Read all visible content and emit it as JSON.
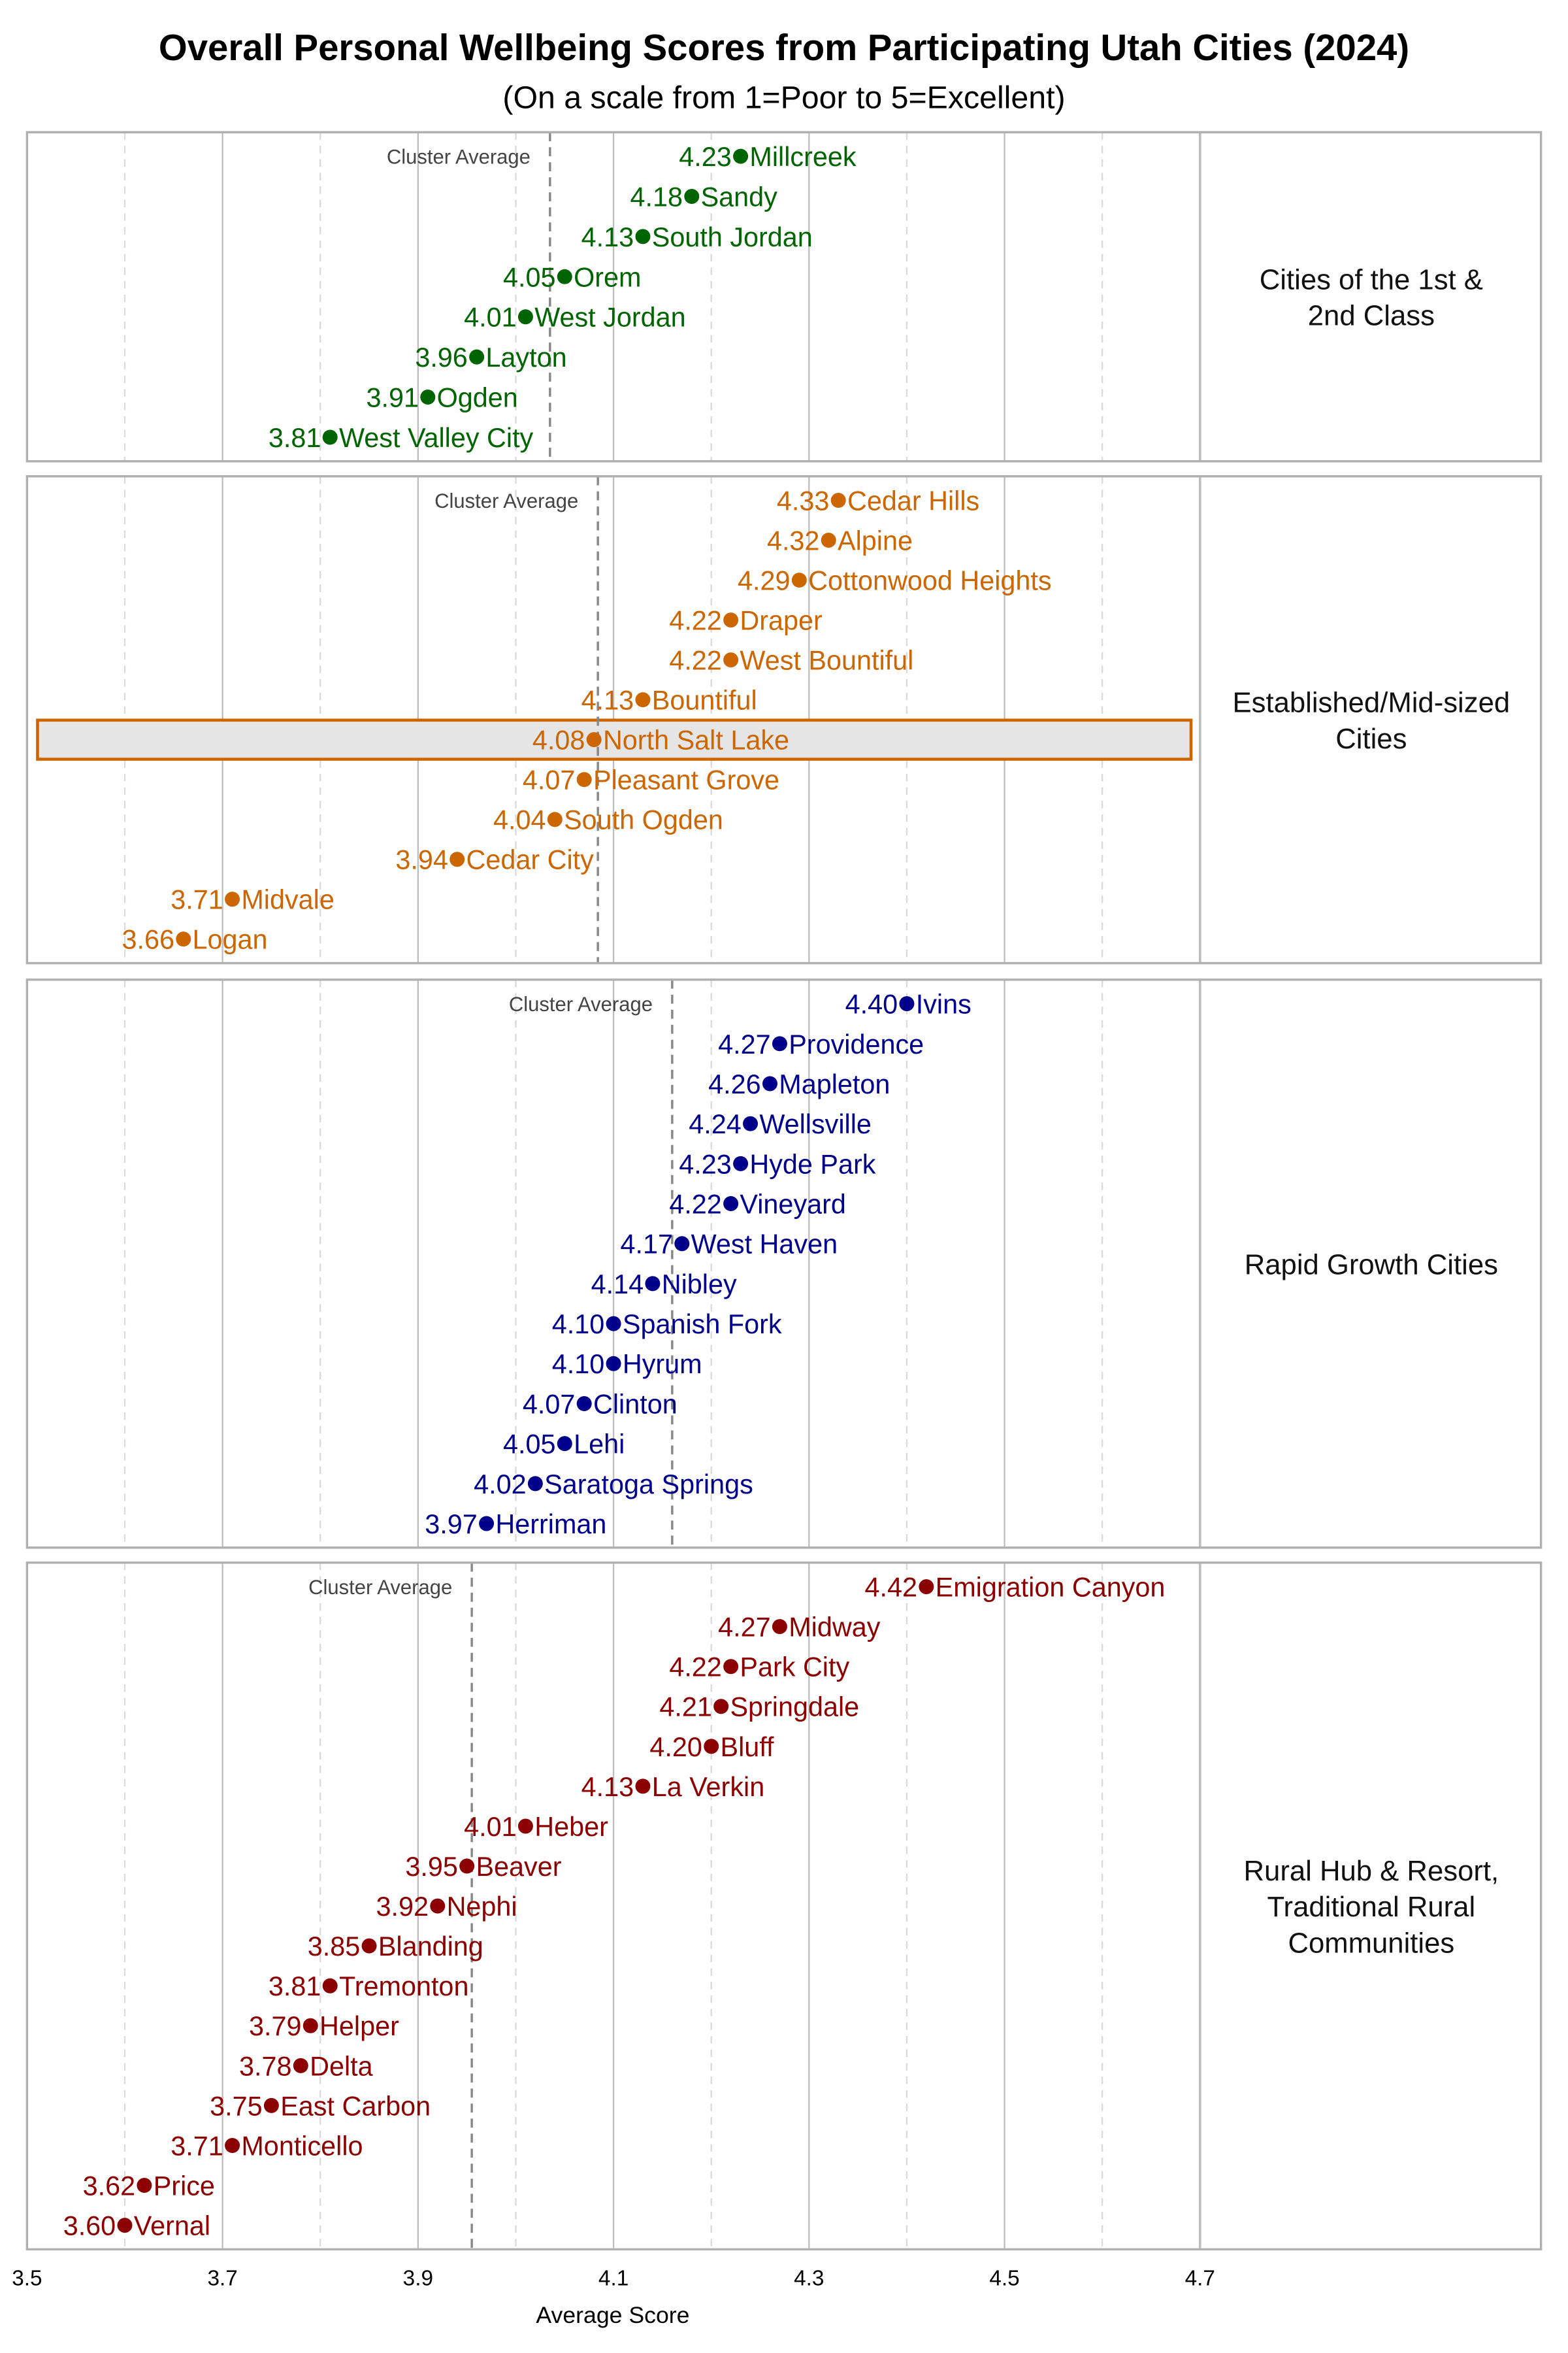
{
  "chart_data": {
    "type": "dot",
    "title": "Overall Personal Wellbeing Scores from Participating Utah Cities (2024)",
    "subtitle": "(On a scale from 1=Poor to 5=Excellent)",
    "xlabel": "Average Score",
    "xlim": [
      3.5,
      5.05
    ],
    "xticks": [
      "3.5",
      "3.7",
      "3.9",
      "4.1",
      "4.3",
      "4.5",
      "4.7"
    ],
    "grid": true,
    "average_label": "Cluster Average",
    "highlight": "North Salt Lake",
    "panels": [
      {
        "name": "Cities of the 1st & 2nd Class",
        "strip": [
          "Cities of the 1st &",
          "2nd Class"
        ],
        "color": "#006400",
        "average": 4.035,
        "points": [
          [
            "Millcreek",
            4.23
          ],
          [
            "Sandy",
            4.18
          ],
          [
            "South Jordan",
            4.13
          ],
          [
            "Orem",
            4.05
          ],
          [
            "West Jordan",
            4.01
          ],
          [
            "Layton",
            3.96
          ],
          [
            "Ogden",
            3.91
          ],
          [
            "West Valley City",
            3.81
          ]
        ]
      },
      {
        "name": "Established/Mid-sized Cities",
        "strip": [
          "Established/Mid-sized",
          "Cities"
        ],
        "color": "#cc6600",
        "average": 4.084,
        "points": [
          [
            "Cedar Hills",
            4.33
          ],
          [
            "Alpine",
            4.32
          ],
          [
            "Cottonwood Heights",
            4.29
          ],
          [
            "Draper",
            4.22
          ],
          [
            "West Bountiful",
            4.22
          ],
          [
            "Bountiful",
            4.13
          ],
          [
            "North Salt Lake",
            4.08
          ],
          [
            "Pleasant Grove",
            4.07
          ],
          [
            "South Ogden",
            4.04
          ],
          [
            "Cedar City",
            3.94
          ],
          [
            "Midvale",
            3.71
          ],
          [
            "Logan",
            3.66
          ]
        ]
      },
      {
        "name": "Rapid Growth Cities",
        "strip": [
          "Rapid Growth Cities"
        ],
        "color": "#00008b",
        "average": 4.16,
        "points": [
          [
            "Ivins",
            4.4
          ],
          [
            "Providence",
            4.27
          ],
          [
            "Mapleton",
            4.26
          ],
          [
            "Wellsville",
            4.24
          ],
          [
            "Hyde Park",
            4.23
          ],
          [
            "Vineyard",
            4.22
          ],
          [
            "West Haven",
            4.17
          ],
          [
            "Nibley",
            4.14
          ],
          [
            "Spanish Fork",
            4.1
          ],
          [
            "Hyrum",
            4.1
          ],
          [
            "Clinton",
            4.07
          ],
          [
            "Lehi",
            4.05
          ],
          [
            "Saratoga Springs",
            4.02
          ],
          [
            "Herriman",
            3.97
          ]
        ]
      },
      {
        "name": "Rural Hub & Resort, Traditional Rural Communities",
        "strip": [
          "Rural Hub & Resort,",
          "Traditional Rural",
          "Communities"
        ],
        "color": "#8b0000",
        "average": 3.955,
        "points": [
          [
            "Emigration Canyon",
            4.42
          ],
          [
            "Midway",
            4.27
          ],
          [
            "Park City",
            4.22
          ],
          [
            "Springdale",
            4.21
          ],
          [
            "Bluff",
            4.2
          ],
          [
            "La Verkin",
            4.13
          ],
          [
            "Heber",
            4.01
          ],
          [
            "Beaver",
            3.95
          ],
          [
            "Nephi",
            3.92
          ],
          [
            "Blanding",
            3.85
          ],
          [
            "Tremonton",
            3.81
          ],
          [
            "Helper",
            3.79
          ],
          [
            "Delta",
            3.78
          ],
          [
            "East Carbon",
            3.75
          ],
          [
            "Monticello",
            3.71
          ],
          [
            "Price",
            3.62
          ],
          [
            "Vernal",
            3.6
          ]
        ]
      }
    ]
  }
}
